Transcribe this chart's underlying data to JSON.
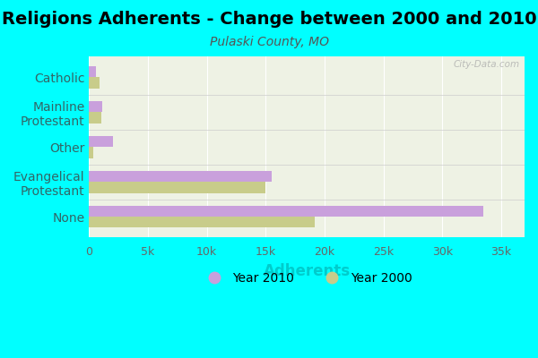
{
  "title": "Religions Adherents - Change between 2000 and 2010",
  "subtitle": "Pulaski County, MO",
  "xlabel": "Adherents",
  "categories": [
    "Catholic",
    "Mainline\nProtestant",
    "Other",
    "Evangelical\nProtestant",
    "None"
  ],
  "values_2010": [
    600,
    1100,
    2000,
    15500,
    33500
  ],
  "values_2000": [
    850,
    1000,
    350,
    15000,
    19200
  ],
  "color_2010": "#c9a0dc",
  "color_2000": "#c8cc8a",
  "background_outer": "#00ffff",
  "background_inner": "#eef2e4",
  "xlim": [
    0,
    37000
  ],
  "xticks": [
    0,
    5000,
    10000,
    15000,
    20000,
    25000,
    30000,
    35000
  ],
  "xticklabels": [
    "0",
    "5k",
    "10k",
    "15k",
    "20k",
    "25k",
    "30k",
    "35k"
  ],
  "bar_height": 0.32,
  "title_fontsize": 14,
  "subtitle_fontsize": 10,
  "label_fontsize": 10,
  "xlabel_fontsize": 12,
  "watermark": "City-Data.com"
}
